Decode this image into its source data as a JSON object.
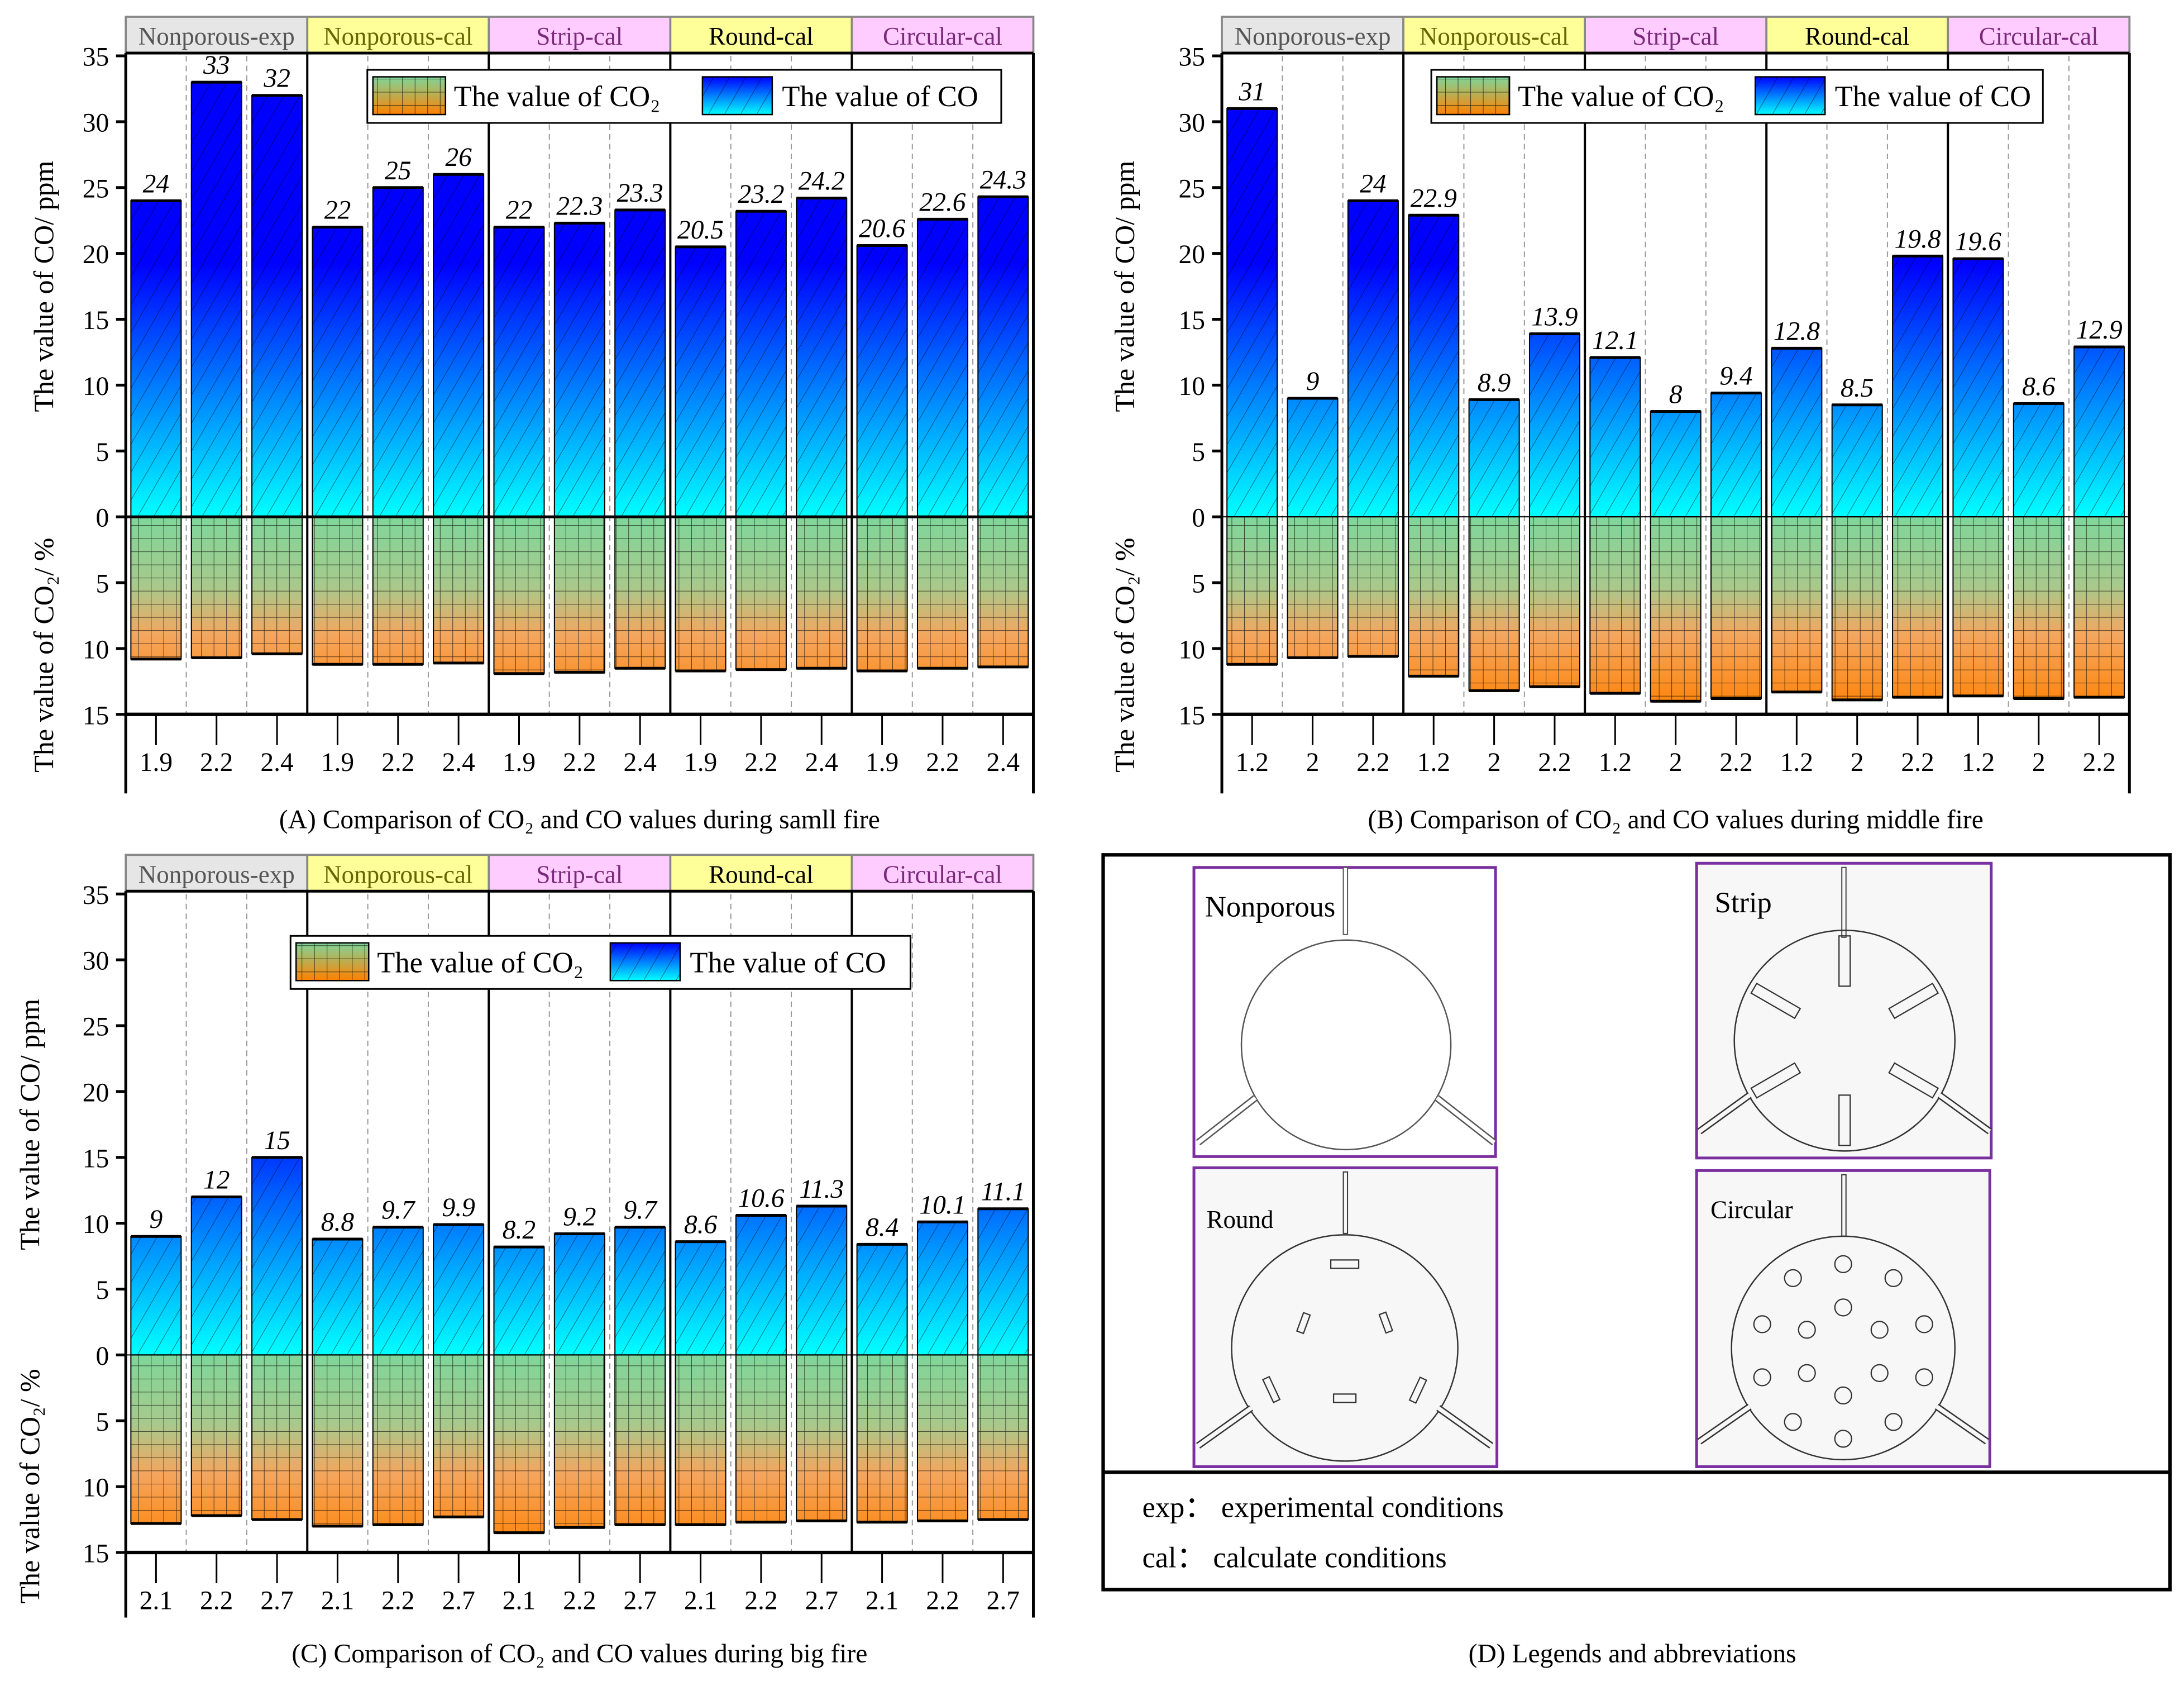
{
  "chart_data": [
    {
      "panel": "A",
      "type": "bar",
      "title": "(A)   Comparison of CO₂ and CO values during samll fire",
      "group_labels": [
        "Nonporous-exp",
        "Nonporous-cal",
        "Strip-cal",
        "Round-cal",
        "Circular-cal"
      ],
      "group_colors": [
        "#e6e6e6",
        "#ffff99",
        "#ffccff",
        "#ffff99",
        "#ffccff"
      ],
      "group_text_colors": [
        "#555555",
        "#666600",
        "#7a2a7a",
        "#000000",
        "#7a2a7a"
      ],
      "categories": [
        "1.9",
        "2.2",
        "2.4",
        "1.9",
        "2.2",
        "2.4",
        "1.9",
        "2.2",
        "2.4",
        "1.9",
        "2.2",
        "2.4",
        "1.9",
        "2.2",
        "2.4"
      ],
      "ylabel_top": "The value of CO/ ppm",
      "ylabel_bottom": "The value of CO₂/ %",
      "yticks_top": [
        "0",
        "5",
        "10",
        "15",
        "20",
        "25",
        "30",
        "35"
      ],
      "yticks_bottom": [
        "5",
        "10",
        "15"
      ],
      "ylim_top": [
        0,
        35
      ],
      "ylim_bottom": [
        0,
        15
      ],
      "legend": {
        "co2": "The value of CO₂",
        "co": "The value of CO",
        "placement": "top-right"
      },
      "series": [
        {
          "name": "The value of CO",
          "values": [
            24,
            33,
            32,
            22,
            25,
            26,
            22,
            22.3,
            23.3,
            20.5,
            23.2,
            24.2,
            20.6,
            22.6,
            24.3
          ]
        },
        {
          "name": "The value of CO₂",
          "values": [
            10.8,
            10.7,
            10.4,
            11.2,
            11.2,
            11.1,
            11.9,
            11.8,
            11.5,
            11.7,
            11.6,
            11.5,
            11.7,
            11.5,
            11.4
          ]
        }
      ]
    },
    {
      "panel": "B",
      "type": "bar",
      "title": "(B)   Comparison of CO₂ and CO values during middle fire",
      "group_labels": [
        "Nonporous-exp",
        "Nonporous-cal",
        "Strip-cal",
        "Round-cal",
        "Circular-cal"
      ],
      "group_colors": [
        "#e6e6e6",
        "#ffff99",
        "#ffccff",
        "#ffff99",
        "#ffccff"
      ],
      "group_text_colors": [
        "#555555",
        "#666600",
        "#7a2a7a",
        "#000000",
        "#7a2a7a"
      ],
      "categories": [
        "1.2",
        "2",
        "2.2",
        "1.2",
        "2",
        "2.2",
        "1.2",
        "2",
        "2.2",
        "1.2",
        "2",
        "2.2",
        "1.2",
        "2",
        "2.2"
      ],
      "ylabel_top": "The value of CO/ ppm",
      "ylabel_bottom": "The value of CO₂/ %",
      "yticks_top": [
        "0",
        "5",
        "10",
        "15",
        "20",
        "25",
        "30",
        "35"
      ],
      "yticks_bottom": [
        "5",
        "10",
        "15"
      ],
      "ylim_top": [
        0,
        35
      ],
      "ylim_bottom": [
        0,
        15
      ],
      "legend": {
        "co2": "The value of CO₂",
        "co": "The value of CO",
        "placement": "top-right"
      },
      "series": [
        {
          "name": "The value of CO",
          "values": [
            31,
            9,
            24,
            22.9,
            8.9,
            13.9,
            12.1,
            8,
            9.4,
            12.8,
            8.5,
            19.8,
            19.6,
            8.6,
            12.9
          ]
        },
        {
          "name": "The value of CO₂",
          "values": [
            11.2,
            10.7,
            10.6,
            12.1,
            13.2,
            12.9,
            13.4,
            14.0,
            13.8,
            13.3,
            13.9,
            13.7,
            13.6,
            13.8,
            13.7
          ]
        }
      ]
    },
    {
      "panel": "C",
      "type": "bar",
      "title": "(C)   Comparison of CO₂ and CO values during big fire",
      "group_labels": [
        "Nonporous-exp",
        "Nonporous-cal",
        "Strip-cal",
        "Round-cal",
        "Circular-cal"
      ],
      "group_colors": [
        "#e6e6e6",
        "#ffff99",
        "#ffccff",
        "#ffff99",
        "#ffccff"
      ],
      "group_text_colors": [
        "#555555",
        "#666600",
        "#7a2a7a",
        "#000000",
        "#7a2a7a"
      ],
      "categories": [
        "2.1",
        "2.2",
        "2.7",
        "2.1",
        "2.2",
        "2.7",
        "2.1",
        "2.2",
        "2.7",
        "2.1",
        "2.2",
        "2.7",
        "2.1",
        "2.2",
        "2.7"
      ],
      "ylabel_top": "The value of CO/ ppm",
      "ylabel_bottom": "The value of CO₂/ %",
      "yticks_top": [
        "0",
        "5",
        "10",
        "15",
        "20",
        "25",
        "30",
        "35"
      ],
      "yticks_bottom": [
        "5",
        "10",
        "15"
      ],
      "ylim_top": [
        0,
        35
      ],
      "ylim_bottom": [
        0,
        15
      ],
      "legend": {
        "co2": "The value of CO₂",
        "co": "The value of CO",
        "placement": "top-center"
      },
      "series": [
        {
          "name": "The value of CO",
          "values": [
            9,
            12,
            15,
            8.8,
            9.7,
            9.9,
            8.2,
            9.2,
            9.7,
            8.6,
            10.6,
            11.3,
            8.4,
            10.1,
            11.1
          ]
        },
        {
          "name": "The value of CO₂",
          "values": [
            12.8,
            12.2,
            12.5,
            13.0,
            12.9,
            12.3,
            13.5,
            13.1,
            12.9,
            12.9,
            12.7,
            12.6,
            12.7,
            12.6,
            12.5
          ]
        }
      ]
    }
  ],
  "colors": {
    "co_top": "#0000ff",
    "co_bottom": "#00ffff",
    "co2_top": "#7fd69a",
    "co2_bottom": "#ff8000",
    "diagram_frame": "#7a2fa0"
  },
  "legend_panel": {
    "title": "(D)  Legends and abbreviations",
    "shapes": [
      "Nonporous",
      "Strip",
      "Round",
      "Circular"
    ],
    "abbreviations": [
      "exp：  experimental conditions",
      "cal：  calculate conditions"
    ]
  }
}
